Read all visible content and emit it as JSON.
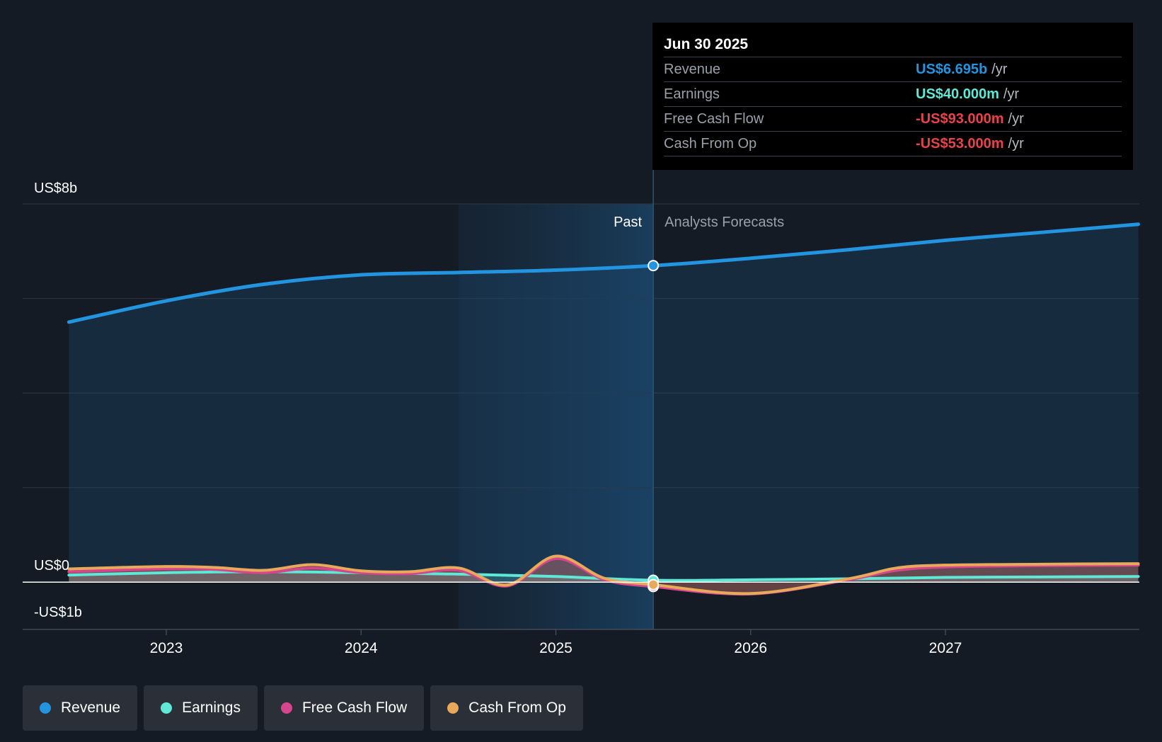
{
  "chart_data": {
    "type": "line",
    "y_axis": {
      "labels": [
        "US$8b",
        "US$0",
        "-US$1b"
      ],
      "ylim": [
        -1,
        8
      ],
      "unit": "US$b"
    },
    "x_axis": {
      "tick_labels": [
        "2023",
        "2024",
        "2025",
        "2026",
        "2027"
      ],
      "xlim": [
        2022.5,
        2027.99
      ]
    },
    "regions": {
      "past_label": "Past",
      "forecast_label": "Analysts Forecasts",
      "past_start": 2024.5,
      "divider": 2025.5
    },
    "series": [
      {
        "name": "Revenue",
        "color": "#2394df",
        "points": [
          [
            2022.5,
            5.5
          ],
          [
            2023.0,
            5.95
          ],
          [
            2023.5,
            6.3
          ],
          [
            2024.0,
            6.5
          ],
          [
            2024.5,
            6.55
          ],
          [
            2025.0,
            6.6
          ],
          [
            2025.5,
            6.695
          ],
          [
            2026.0,
            6.85
          ],
          [
            2026.5,
            7.03
          ],
          [
            2027.0,
            7.23
          ],
          [
            2027.5,
            7.4
          ],
          [
            2027.99,
            7.57
          ]
        ]
      },
      {
        "name": "Earnings",
        "color": "#5ee8d5",
        "points": [
          [
            2022.5,
            0.15
          ],
          [
            2023.0,
            0.2
          ],
          [
            2023.5,
            0.22
          ],
          [
            2024.0,
            0.2
          ],
          [
            2024.5,
            0.17
          ],
          [
            2025.0,
            0.12
          ],
          [
            2025.5,
            0.04
          ],
          [
            2026.0,
            0.05
          ],
          [
            2026.5,
            0.07
          ],
          [
            2027.0,
            0.1
          ],
          [
            2027.5,
            0.11
          ],
          [
            2027.99,
            0.12
          ]
        ]
      },
      {
        "name": "Free Cash Flow",
        "color": "#d6468d",
        "points": [
          [
            2022.5,
            0.22
          ],
          [
            2023.0,
            0.28
          ],
          [
            2023.25,
            0.27
          ],
          [
            2023.5,
            0.2
          ],
          [
            2023.75,
            0.3
          ],
          [
            2024.0,
            0.2
          ],
          [
            2024.25,
            0.18
          ],
          [
            2024.5,
            0.25
          ],
          [
            2024.75,
            -0.08
          ],
          [
            2025.0,
            0.5
          ],
          [
            2025.25,
            0.05
          ],
          [
            2025.5,
            -0.093
          ],
          [
            2026.0,
            -0.25
          ],
          [
            2026.5,
            0.05
          ],
          [
            2026.75,
            0.25
          ],
          [
            2027.0,
            0.32
          ],
          [
            2027.5,
            0.35
          ],
          [
            2027.99,
            0.36
          ]
        ]
      },
      {
        "name": "Cash From Op",
        "color": "#e8a95b",
        "points": [
          [
            2022.5,
            0.28
          ],
          [
            2023.0,
            0.33
          ],
          [
            2023.25,
            0.31
          ],
          [
            2023.5,
            0.25
          ],
          [
            2023.75,
            0.37
          ],
          [
            2024.0,
            0.24
          ],
          [
            2024.25,
            0.22
          ],
          [
            2024.5,
            0.3
          ],
          [
            2024.75,
            -0.06
          ],
          [
            2025.0,
            0.55
          ],
          [
            2025.25,
            0.08
          ],
          [
            2025.5,
            -0.053
          ],
          [
            2026.0,
            -0.24
          ],
          [
            2026.5,
            0.07
          ],
          [
            2026.75,
            0.3
          ],
          [
            2027.0,
            0.36
          ],
          [
            2027.5,
            0.38
          ],
          [
            2027.99,
            0.39
          ]
        ]
      }
    ]
  },
  "tooltip": {
    "date": "Jun 30 2025",
    "rows": [
      {
        "name": "Revenue",
        "value": "US$6.695b",
        "unit": "/yr",
        "color": "#2394df"
      },
      {
        "name": "Earnings",
        "value": "US$40.000m",
        "unit": "/yr",
        "color": "#5ee8d5"
      },
      {
        "name": "Free Cash Flow",
        "value": "-US$93.000m",
        "unit": "/yr",
        "color": "#e8424b"
      },
      {
        "name": "Cash From Op",
        "value": "-US$53.000m",
        "unit": "/yr",
        "color": "#e8424b"
      }
    ]
  },
  "legend": [
    {
      "label": "Revenue",
      "color": "#2394df"
    },
    {
      "label": "Earnings",
      "color": "#5ee8d5"
    },
    {
      "label": "Free Cash Flow",
      "color": "#d6468d"
    },
    {
      "label": "Cash From Op",
      "color": "#e8a95b"
    }
  ]
}
